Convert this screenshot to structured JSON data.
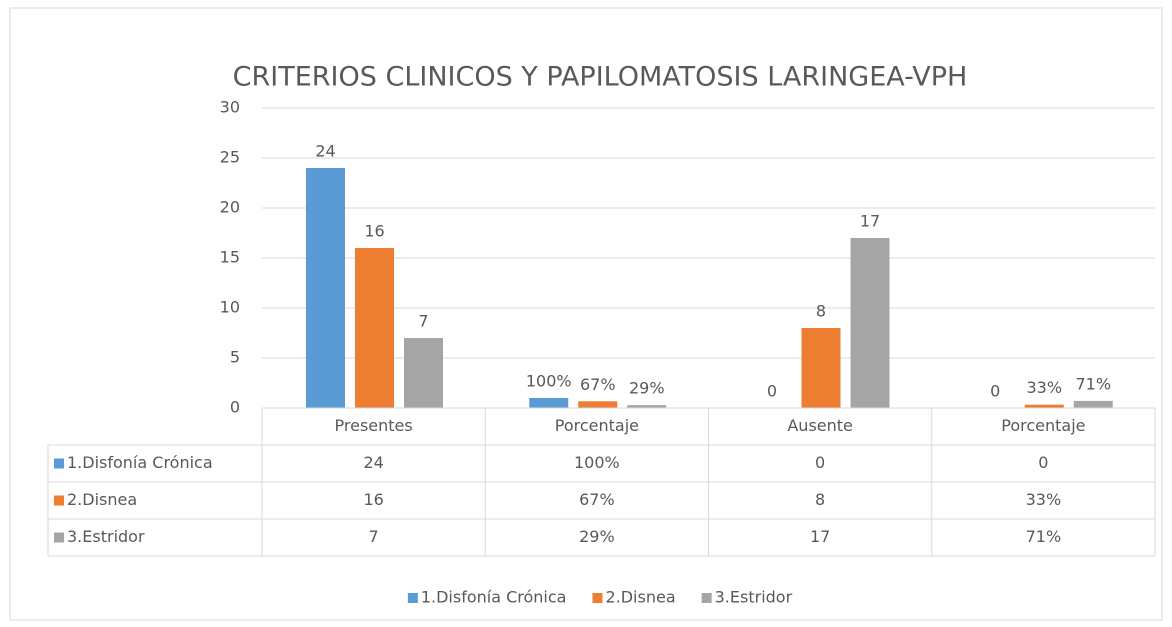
{
  "chart_data": {
    "type": "bar",
    "title": "CRITERIOS CLINICOS Y PAPILOMATOSIS LARINGEA-VPH",
    "categories": [
      "Presentes",
      "Porcentaje",
      "Ausente",
      "Porcentaje"
    ],
    "series": [
      {
        "name": "1.Disfonía Crónica",
        "color": "#5b9bd5",
        "values": [
          24,
          1,
          0,
          0
        ],
        "value_labels": [
          "24",
          "100%",
          "0",
          "0"
        ]
      },
      {
        "name": "2.Disnea",
        "color": "#ed7d31",
        "values": [
          16,
          0.67,
          8,
          0.33
        ],
        "value_labels": [
          "16",
          "67%",
          "8",
          "33%"
        ]
      },
      {
        "name": "3.Estridor",
        "color": "#a5a5a5",
        "values": [
          7,
          0.29,
          17,
          0.71
        ],
        "value_labels": [
          "7",
          "29%",
          "17",
          "71%"
        ]
      }
    ],
    "ylim": [
      0,
      30
    ],
    "yticks": [
      0,
      5,
      10,
      15,
      20,
      25,
      30
    ],
    "grid": true,
    "legend": "bottom",
    "data_table": true
  }
}
